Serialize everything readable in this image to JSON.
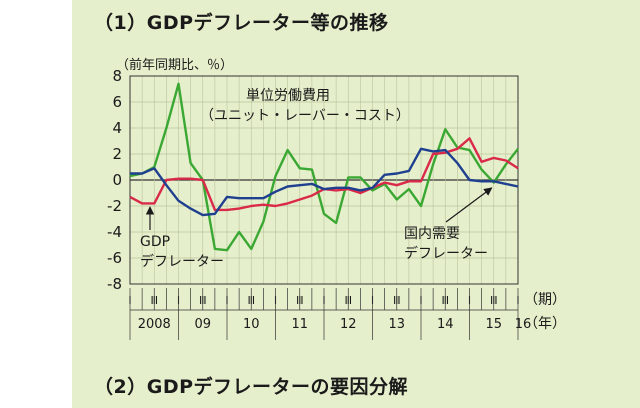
{
  "headings": {
    "first": "（1）GDPデフレーター等の推移",
    "second": "（2）GDPデフレーターの要因分解"
  },
  "chart_data": {
    "type": "line",
    "ylabel": "（前年同期比、％）",
    "ylim": [
      -8,
      8
    ],
    "yticks": [
      8,
      6,
      4,
      2,
      0,
      -2,
      -4,
      -6,
      -8
    ],
    "x_period_label": "（期）",
    "x_year_label": "（年）",
    "quarter_marks": [
      "Ⅰ",
      "Ⅲ",
      "Ⅰ",
      "Ⅲ",
      "Ⅰ",
      "Ⅲ",
      "Ⅰ",
      "Ⅲ",
      "Ⅰ",
      "Ⅲ",
      "Ⅰ",
      "Ⅲ",
      "Ⅰ",
      "Ⅲ",
      "Ⅰ",
      "Ⅲ",
      "Ⅰ"
    ],
    "years": [
      "2008",
      "09",
      "10",
      "11",
      "12",
      "13",
      "14",
      "15",
      "16"
    ],
    "x": [
      "2008Q1",
      "2008Q2",
      "2008Q3",
      "2008Q4",
      "2009Q1",
      "2009Q2",
      "2009Q3",
      "2009Q4",
      "2010Q1",
      "2010Q2",
      "2010Q3",
      "2010Q4",
      "2011Q1",
      "2011Q2",
      "2011Q3",
      "2011Q4",
      "2012Q1",
      "2012Q2",
      "2012Q3",
      "2012Q4",
      "2013Q1",
      "2013Q2",
      "2013Q3",
      "2013Q4",
      "2014Q1",
      "2014Q2",
      "2014Q3",
      "2014Q4",
      "2015Q1",
      "2015Q2",
      "2015Q3",
      "2015Q4",
      "2016Q1"
    ],
    "series": [
      {
        "name": "単位労働費用（ユニット・レーバー・コスト）",
        "color": "#3aa832",
        "values": [
          0.3,
          0.5,
          1.0,
          4.0,
          7.4,
          1.3,
          0.0,
          -5.3,
          -5.4,
          -4.0,
          -5.3,
          -3.2,
          0.3,
          2.3,
          0.9,
          0.8,
          -2.6,
          -3.3,
          0.2,
          0.2,
          -0.8,
          -0.3,
          -1.5,
          -0.7,
          -2.0,
          1.2,
          3.9,
          2.5,
          2.3,
          0.8,
          -0.2,
          1.2,
          2.4
        ]
      },
      {
        "name": "GDPデフレーター",
        "color": "#d92a4a",
        "values": [
          -1.3,
          -1.8,
          -1.8,
          0.0,
          0.1,
          0.1,
          0.0,
          -2.3,
          -2.3,
          -2.2,
          -2.0,
          -1.9,
          -2.0,
          -1.8,
          -1.5,
          -1.2,
          -0.7,
          -0.8,
          -0.7,
          -1.0,
          -0.6,
          -0.2,
          -0.4,
          -0.1,
          -0.1,
          2.0,
          2.1,
          2.4,
          3.2,
          1.4,
          1.7,
          1.5,
          0.9
        ]
      },
      {
        "name": "国内需要デフレーター",
        "color": "#1f3f8f",
        "values": [
          0.5,
          0.5,
          0.9,
          -0.4,
          -1.6,
          -2.2,
          -2.7,
          -2.6,
          -1.3,
          -1.4,
          -1.4,
          -1.4,
          -0.9,
          -0.5,
          -0.4,
          -0.3,
          -0.7,
          -0.6,
          -0.6,
          -0.8,
          -0.6,
          0.4,
          0.5,
          0.7,
          2.4,
          2.2,
          2.3,
          1.3,
          0.0,
          -0.1,
          -0.1,
          -0.3,
          -0.5
        ]
      }
    ],
    "annotations": {
      "ulc": "単位労働費用",
      "ulc_sub": "（ユニット・レーバー・コスト）",
      "gdp_1": "GDP",
      "gdp_2": "デフレーター",
      "dom_1": "国内需要",
      "dom_2": "デフレーター"
    }
  }
}
